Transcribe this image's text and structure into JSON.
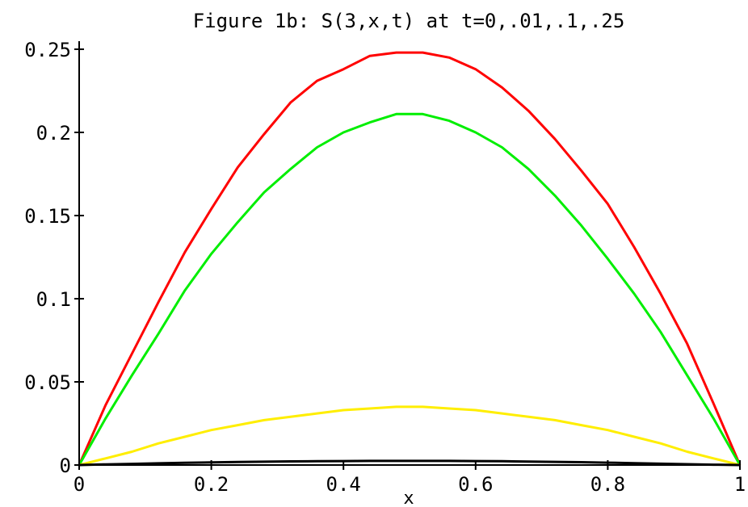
{
  "chart_data": {
    "type": "line",
    "title": "Figure 1b: S(3,x,t) at t=0,.01,.1,.25",
    "xlabel": "x",
    "ylabel": "",
    "xlim": [
      0,
      1
    ],
    "ylim": [
      0,
      0.25
    ],
    "grid": false,
    "legend": "none",
    "x_ticks": [
      0,
      0.2,
      0.4,
      0.6,
      0.8,
      1
    ],
    "x_tick_labels": [
      "0",
      "0.2",
      "0.4",
      "0.6",
      "0.8",
      "1"
    ],
    "y_ticks": [
      0,
      0.05,
      0.1,
      0.15,
      0.2,
      0.25
    ],
    "y_tick_labels": [
      "0",
      "0.05",
      "0.1",
      "0.15",
      "0.2",
      "0.25"
    ],
    "x": [
      0,
      0.04,
      0.08,
      0.12,
      0.16,
      0.2,
      0.24,
      0.28,
      0.32,
      0.36,
      0.4,
      0.44,
      0.48,
      0.52,
      0.56,
      0.6,
      0.64,
      0.68,
      0.72,
      0.76,
      0.8,
      0.84,
      0.88,
      0.92,
      0.96,
      1
    ],
    "series": [
      {
        "color": "#ff0000",
        "values": [
          0,
          0.036,
          0.067,
          0.098,
          0.128,
          0.154,
          0.179,
          0.199,
          0.218,
          0.231,
          0.238,
          0.246,
          0.248,
          0.248,
          0.245,
          0.238,
          0.227,
          0.213,
          0.196,
          0.177,
          0.157,
          0.131,
          0.103,
          0.073,
          0.037,
          0
        ]
      },
      {
        "color": "#00ee00",
        "values": [
          0,
          0.028,
          0.054,
          0.079,
          0.105,
          0.127,
          0.146,
          0.164,
          0.178,
          0.191,
          0.2,
          0.206,
          0.211,
          0.211,
          0.207,
          0.2,
          0.191,
          0.178,
          0.162,
          0.144,
          0.124,
          0.103,
          0.08,
          0.054,
          0.028,
          0
        ]
      },
      {
        "color": "#ffee00",
        "values": [
          0,
          0.004,
          0.008,
          0.013,
          0.017,
          0.021,
          0.024,
          0.027,
          0.029,
          0.031,
          0.033,
          0.034,
          0.035,
          0.035,
          0.034,
          0.033,
          0.031,
          0.029,
          0.027,
          0.024,
          0.021,
          0.017,
          0.013,
          0.008,
          0.004,
          0
        ]
      },
      {
        "color": "#000000",
        "values": [
          0,
          0.0004,
          0.0007,
          0.001,
          0.0013,
          0.0016,
          0.0018,
          0.002,
          0.0022,
          0.0023,
          0.0024,
          0.0025,
          0.0025,
          0.0025,
          0.0025,
          0.0024,
          0.0023,
          0.0021,
          0.0019,
          0.0017,
          0.0014,
          0.0011,
          0.0008,
          0.0005,
          0.0002,
          0
        ]
      }
    ]
  }
}
